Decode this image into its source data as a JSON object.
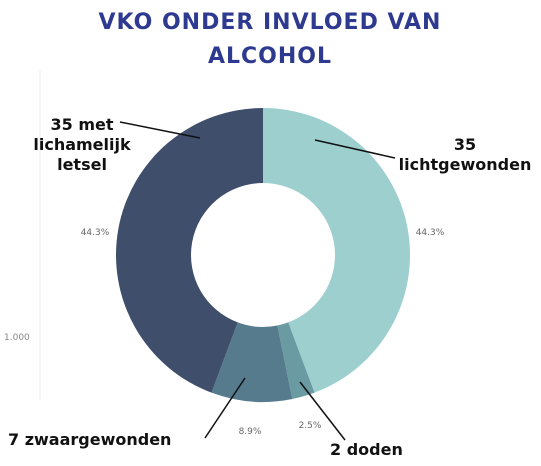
{
  "chart_data": {
    "type": "donut",
    "title": "VKO ONDER INVLOED VAN ALCOHOL",
    "categories": [
      "35 lichtgewonden",
      "2 doden",
      "7 zwaargewonden",
      "35 met lichamelijk letsel"
    ],
    "values": [
      44.3,
      2.5,
      8.9,
      44.3
    ],
    "value_labels": [
      "44.3%",
      "2.5%",
      "8.9%",
      "44.3%"
    ],
    "colors": [
      "#9dcfcf",
      "#6b9ba2",
      "#557b8d",
      "#3e4e6b"
    ],
    "annotation": "1.000"
  }
}
